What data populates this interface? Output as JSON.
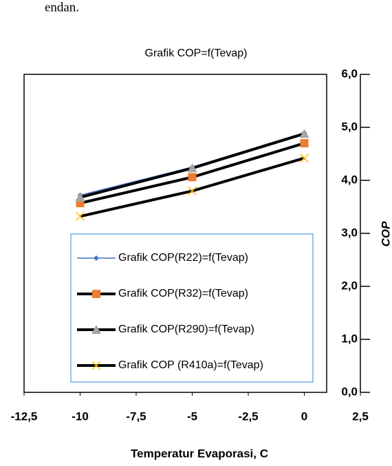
{
  "header_text": "endan.",
  "chart_data": {
    "type": "line",
    "title": "Grafik COP=f(Tevap)",
    "x_label": "Temperatur Evaporasi, C",
    "y_label": "COP",
    "x": [
      -10,
      -5,
      0
    ],
    "xlim": [
      -12.5,
      2.5
    ],
    "xticks": [
      {
        "value": -12.5,
        "label": "-12,5"
      },
      -10,
      {
        "value": -7.5,
        "label": "-7,5"
      },
      -5,
      {
        "value": -2.5,
        "label": "-2,5"
      },
      0,
      {
        "value": 2.5,
        "label": "2,5"
      }
    ],
    "ylim": [
      0,
      6
    ],
    "yticks": [
      {
        "value": 0,
        "label": "0,0"
      },
      {
        "value": 1,
        "label": "1,0"
      },
      {
        "value": 2,
        "label": "2,0"
      },
      {
        "value": 3,
        "label": "3,0"
      },
      {
        "value": 4,
        "label": "4,0"
      },
      {
        "value": 5,
        "label": "5,0"
      },
      {
        "value": 6,
        "label": "6,0"
      }
    ],
    "series": [
      {
        "name": "Grafik COP(R22)=f(Tevap)",
        "color": "#4472c4",
        "line_color": "#4472c4",
        "marker": "diamond",
        "values": [
          3.72,
          4.25,
          4.9
        ]
      },
      {
        "name": "Grafik COP(R32)=f(Tevap)",
        "color": "#ed7d31",
        "line_color": "#000000",
        "marker": "square",
        "values": [
          3.57,
          4.06,
          4.7
        ]
      },
      {
        "name": "Grafik COP(R290)=f(Tevap)",
        "color": "#a5a5a5",
        "line_color": "#000000",
        "marker": "triangle",
        "values": [
          3.68,
          4.23,
          4.88
        ]
      },
      {
        "name": "Grafik COP (R410a)=f(Tevap)",
        "color": "#ffc000",
        "line_color": "#000000",
        "marker": "x",
        "values": [
          3.32,
          3.8,
          4.42
        ]
      }
    ],
    "legend": "inside"
  }
}
